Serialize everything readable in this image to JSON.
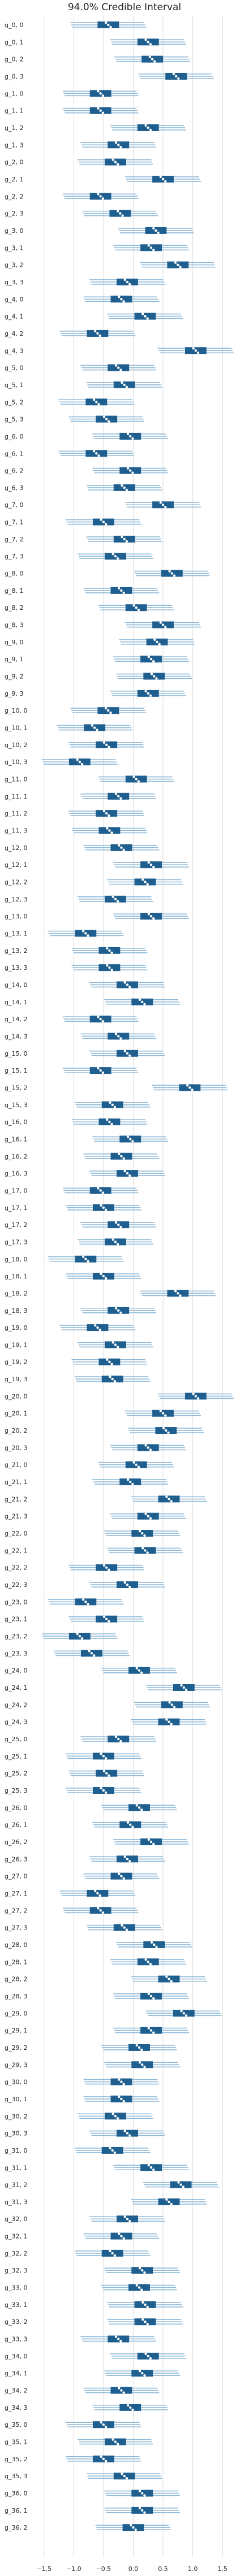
{
  "chart_data": {
    "type": "forest",
    "title": "94.0% Credible Interval",
    "xlabel": "",
    "ylabel": "",
    "xlim": [
      -1.65,
      1.85
    ],
    "xticks": [
      -1.5,
      -1.0,
      -0.5,
      0.0,
      0.5,
      1.0,
      1.5
    ],
    "xtick_labels": [
      "−1.5",
      "−1.0",
      "−0.5",
      "0.0",
      "0.5",
      "1.0",
      "1.5"
    ],
    "grid": "vertical",
    "colors": {
      "interval": "#8fb9d8",
      "box": "#1f5f8f",
      "median": "#ffffff",
      "grid": "#dddddd"
    },
    "rows": [
      {
        "label": "g_0, 0",
        "mean": -0.42
      },
      {
        "label": "g_0, 1",
        "mean": 0.25
      },
      {
        "label": "g_0, 2",
        "mean": 0.32
      },
      {
        "label": "g_0, 3",
        "mean": 0.72
      },
      {
        "label": "g_1, 0",
        "mean": -0.55
      },
      {
        "label": "g_1, 1",
        "mean": -0.55
      },
      {
        "label": "g_1, 2",
        "mean": 0.25
      },
      {
        "label": "g_1, 3",
        "mean": -0.25
      },
      {
        "label": "g_2, 0",
        "mean": -0.3
      },
      {
        "label": "g_2, 1",
        "mean": 0.5
      },
      {
        "label": "g_2, 2",
        "mean": -0.55
      },
      {
        "label": "g_2, 3",
        "mean": -0.22
      },
      {
        "label": "g_3, 0",
        "mean": 0.38
      },
      {
        "label": "g_3, 1",
        "mean": 0.3
      },
      {
        "label": "g_3, 2",
        "mean": 0.75
      },
      {
        "label": "g_3, 3",
        "mean": -0.1
      },
      {
        "label": "g_4, 0",
        "mean": -0.2
      },
      {
        "label": "g_4, 1",
        "mean": 0.2
      },
      {
        "label": "g_4, 2",
        "mean": -0.6
      },
      {
        "label": "g_4, 3",
        "mean": 1.05
      },
      {
        "label": "g_5, 0",
        "mean": -0.25
      },
      {
        "label": "g_5, 1",
        "mean": -0.15
      },
      {
        "label": "g_5, 2",
        "mean": -0.62
      },
      {
        "label": "g_5, 3",
        "mean": -0.45
      },
      {
        "label": "g_6, 0",
        "mean": -0.05
      },
      {
        "label": "g_6, 1",
        "mean": -0.62
      },
      {
        "label": "g_6, 2",
        "mean": -0.05
      },
      {
        "label": "g_6, 3",
        "mean": -0.15
      },
      {
        "label": "g_7, 0",
        "mean": 0.5
      },
      {
        "label": "g_7, 1",
        "mean": -0.5
      },
      {
        "label": "g_7, 2",
        "mean": -0.15
      },
      {
        "label": "g_7, 3",
        "mean": -0.3
      },
      {
        "label": "g_8, 0",
        "mean": 0.65
      },
      {
        "label": "g_8, 1",
        "mean": -0.2
      },
      {
        "label": "g_8, 2",
        "mean": 0.05
      },
      {
        "label": "g_8, 3",
        "mean": 0.5
      },
      {
        "label": "g_9, 0",
        "mean": 0.4
      },
      {
        "label": "g_9, 1",
        "mean": 0.3
      },
      {
        "label": "g_9, 2",
        "mean": 0.35
      },
      {
        "label": "g_9, 3",
        "mean": 0.25
      },
      {
        "label": "g_10, 0",
        "mean": -0.42
      },
      {
        "label": "g_10, 1",
        "mean": -0.65
      },
      {
        "label": "g_10, 2",
        "mean": -0.45
      },
      {
        "label": "g_10, 3",
        "mean": -0.9
      },
      {
        "label": "g_11, 0",
        "mean": 0.05
      },
      {
        "label": "g_11, 1",
        "mean": -0.25
      },
      {
        "label": "g_11, 2",
        "mean": -0.45
      },
      {
        "label": "g_11, 3",
        "mean": -0.4
      },
      {
        "label": "g_12, 0",
        "mean": -0.2
      },
      {
        "label": "g_12, 1",
        "mean": 0.3
      },
      {
        "label": "g_12, 2",
        "mean": 0.2
      },
      {
        "label": "g_12, 3",
        "mean": -0.3
      },
      {
        "label": "g_13, 0",
        "mean": 0.3
      },
      {
        "label": "g_13, 1",
        "mean": -0.8
      },
      {
        "label": "g_13, 2",
        "mean": -0.4
      },
      {
        "label": "g_13, 3",
        "mean": -0.4
      },
      {
        "label": "g_14, 0",
        "mean": -0.1
      },
      {
        "label": "g_14, 1",
        "mean": 0.15
      },
      {
        "label": "g_14, 2",
        "mean": -0.55
      },
      {
        "label": "g_14, 3",
        "mean": -0.25
      },
      {
        "label": "g_15, 0",
        "mean": -0.1
      },
      {
        "label": "g_15, 1",
        "mean": -0.55
      },
      {
        "label": "g_15, 2",
        "mean": 0.95
      },
      {
        "label": "g_15, 3",
        "mean": -0.35
      },
      {
        "label": "g_16, 0",
        "mean": -0.4
      },
      {
        "label": "g_16, 1",
        "mean": -0.05
      },
      {
        "label": "g_16, 2",
        "mean": -0.2
      },
      {
        "label": "g_16, 3",
        "mean": -0.1
      },
      {
        "label": "g_17, 0",
        "mean": -0.55
      },
      {
        "label": "g_17, 1",
        "mean": -0.5
      },
      {
        "label": "g_17, 2",
        "mean": -0.25
      },
      {
        "label": "g_17, 3",
        "mean": -0.3
      },
      {
        "label": "g_18, 0",
        "mean": -0.8
      },
      {
        "label": "g_18, 1",
        "mean": -0.5
      },
      {
        "label": "g_18, 2",
        "mean": 0.75
      },
      {
        "label": "g_18, 3",
        "mean": -0.25
      },
      {
        "label": "g_19, 0",
        "mean": -0.6
      },
      {
        "label": "g_19, 1",
        "mean": -0.3
      },
      {
        "label": "g_19, 2",
        "mean": -0.4
      },
      {
        "label": "g_19, 3",
        "mean": -0.35
      },
      {
        "label": "g_20, 0",
        "mean": 1.05
      },
      {
        "label": "g_20, 1",
        "mean": 0.5
      },
      {
        "label": "g_20, 2",
        "mean": 0.55
      },
      {
        "label": "g_20, 3",
        "mean": 0.25
      },
      {
        "label": "g_21, 0",
        "mean": 0.05
      },
      {
        "label": "g_21, 1",
        "mean": -0.05
      },
      {
        "label": "g_21, 2",
        "mean": 0.6
      },
      {
        "label": "g_21, 3",
        "mean": 0.25
      },
      {
        "label": "g_22, 0",
        "mean": 0.15
      },
      {
        "label": "g_22, 1",
        "mean": 0.2
      },
      {
        "label": "g_22, 2",
        "mean": -0.45
      },
      {
        "label": "g_22, 3",
        "mean": -0.1
      },
      {
        "label": "g_23, 0",
        "mean": -0.8
      },
      {
        "label": "g_23, 1",
        "mean": -0.45
      },
      {
        "label": "g_23, 2",
        "mean": -0.9
      },
      {
        "label": "g_23, 3",
        "mean": -0.7
      },
      {
        "label": "g_24, 0",
        "mean": 0.1
      },
      {
        "label": "g_24, 1",
        "mean": 0.85
      },
      {
        "label": "g_24, 2",
        "mean": 0.65
      },
      {
        "label": "g_24, 3",
        "mean": 0.6
      },
      {
        "label": "g_25, 0",
        "mean": -0.25
      },
      {
        "label": "g_25, 1",
        "mean": -0.5
      },
      {
        "label": "g_25, 2",
        "mean": -0.45
      },
      {
        "label": "g_25, 3",
        "mean": -0.5
      },
      {
        "label": "g_26, 0",
        "mean": 0.1
      },
      {
        "label": "g_26, 1",
        "mean": -0.05
      },
      {
        "label": "g_26, 2",
        "mean": 0.3
      },
      {
        "label": "g_26, 3",
        "mean": -0.1
      },
      {
        "label": "g_27, 0",
        "mean": -0.2
      },
      {
        "label": "g_27, 1",
        "mean": -0.6
      },
      {
        "label": "g_27, 2",
        "mean": -0.55
      },
      {
        "label": "g_27, 3",
        "mean": -0.15
      },
      {
        "label": "g_28, 0",
        "mean": 0.35
      },
      {
        "label": "g_28, 1",
        "mean": 0.25
      },
      {
        "label": "g_28, 2",
        "mean": 0.6
      },
      {
        "label": "g_28, 3",
        "mean": 0.3
      },
      {
        "label": "g_29, 0",
        "mean": 0.85
      },
      {
        "label": "g_29, 1",
        "mean": 0.3
      },
      {
        "label": "g_29, 2",
        "mean": 0.1
      },
      {
        "label": "g_29, 3",
        "mean": 0.15
      },
      {
        "label": "g_30, 0",
        "mean": -0.2
      },
      {
        "label": "g_30, 1",
        "mean": -0.2
      },
      {
        "label": "g_30, 2",
        "mean": -0.3
      },
      {
        "label": "g_30, 3",
        "mean": -0.1
      },
      {
        "label": "g_31, 0",
        "mean": -0.35
      },
      {
        "label": "g_31, 1",
        "mean": 0.3
      },
      {
        "label": "g_31, 2",
        "mean": 0.8
      },
      {
        "label": "g_31, 3",
        "mean": 0.6
      },
      {
        "label": "g_32, 0",
        "mean": -0.1
      },
      {
        "label": "g_32, 1",
        "mean": -0.2
      },
      {
        "label": "g_32, 2",
        "mean": -0.35
      },
      {
        "label": "g_32, 3",
        "mean": 0.15
      },
      {
        "label": "g_33, 0",
        "mean": 0.1
      },
      {
        "label": "g_33, 1",
        "mean": 0.2
      },
      {
        "label": "g_33, 2",
        "mean": 0.2
      },
      {
        "label": "g_33, 3",
        "mean": -0.25
      },
      {
        "label": "g_34, 0",
        "mean": 0.25
      },
      {
        "label": "g_34, 1",
        "mean": 0.15
      },
      {
        "label": "g_34, 2",
        "mean": -0.2
      },
      {
        "label": "g_34, 3",
        "mean": -0.05
      },
      {
        "label": "g_35, 0",
        "mean": -0.5
      },
      {
        "label": "g_35, 1",
        "mean": -0.3
      },
      {
        "label": "g_35, 2",
        "mean": -0.5
      },
      {
        "label": "g_35, 3",
        "mean": -0.15
      },
      {
        "label": "g_36, 0",
        "mean": 0.15
      },
      {
        "label": "g_36, 1",
        "mean": 0.15
      },
      {
        "label": "g_36, 2",
        "mean": 0.0
      }
    ]
  }
}
